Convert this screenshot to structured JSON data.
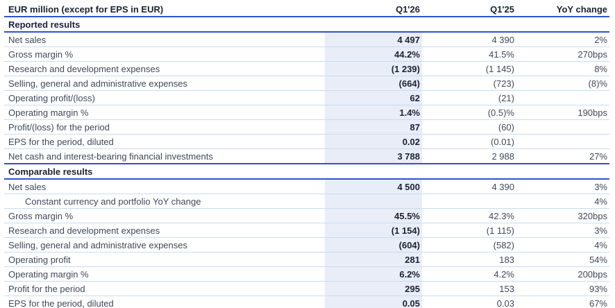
{
  "colors": {
    "accent_line": "#2d53cd",
    "row_divider": "#c8dcf0",
    "highlight_column_bg": "#e9edf8",
    "text_primary": "#1b2230",
    "text_secondary": "#3f4859"
  },
  "table": {
    "unit_header": "EUR million (except for EPS in EUR)",
    "columns": [
      "Q1'26",
      "Q1'25",
      "YoY change"
    ],
    "sections": [
      {
        "title": "Reported results",
        "rows": [
          {
            "label": "Net sales",
            "q126": "4 497",
            "q125": "4 390",
            "yoy": "2%"
          },
          {
            "label": "Gross margin %",
            "q126": "44.2%",
            "q125": "41.5%",
            "yoy": "270bps"
          },
          {
            "label": "Research and development expenses",
            "q126": "(1 239)",
            "q125": "(1 145)",
            "yoy": "8%"
          },
          {
            "label": "Selling, general and administrative expenses",
            "q126": "(664)",
            "q125": "(723)",
            "yoy": "(8)%"
          },
          {
            "label": "Operating profit/(loss)",
            "q126": "62",
            "q125": "(21)",
            "yoy": ""
          },
          {
            "label": "Operating margin %",
            "q126": "1.4%",
            "q125": "(0.5)%",
            "yoy": "190bps"
          },
          {
            "label": "Profit/(loss) for the period",
            "q126": "87",
            "q125": "(60)",
            "yoy": ""
          },
          {
            "label": "EPS for the period, diluted",
            "q126": "0.02",
            "q125": "(0.01)",
            "yoy": ""
          },
          {
            "label": "Net cash and interest-bearing financial investments",
            "q126": "3 788",
            "q125": "2 988",
            "yoy": "27%"
          }
        ]
      },
      {
        "title": "Comparable results",
        "rows": [
          {
            "label": "Net sales",
            "q126": "4 500",
            "q125": "4 390",
            "yoy": "3%"
          },
          {
            "label": "Constant currency and portfolio YoY change",
            "indent": true,
            "q126": "",
            "q125": "",
            "yoy": "4%"
          },
          {
            "label": "Gross margin %",
            "q126": "45.5%",
            "q125": "42.3%",
            "yoy": "320bps"
          },
          {
            "label": "Research and development expenses",
            "q126": "(1 154)",
            "q125": "(1 115)",
            "yoy": "3%"
          },
          {
            "label": "Selling, general and administrative expenses",
            "q126": "(604)",
            "q125": "(582)",
            "yoy": "4%"
          },
          {
            "label": "Operating profit",
            "q126": "281",
            "q125": "183",
            "yoy": "54%"
          },
          {
            "label": "Operating margin %",
            "q126": "6.2%",
            "q125": "4.2%",
            "yoy": "200bps"
          },
          {
            "label": "Profit for the period",
            "q126": "295",
            "q125": "153",
            "yoy": "93%"
          },
          {
            "label": "EPS for the period, diluted",
            "q126": "0.05",
            "q125": "0.03",
            "yoy": "67%"
          }
        ]
      }
    ]
  }
}
